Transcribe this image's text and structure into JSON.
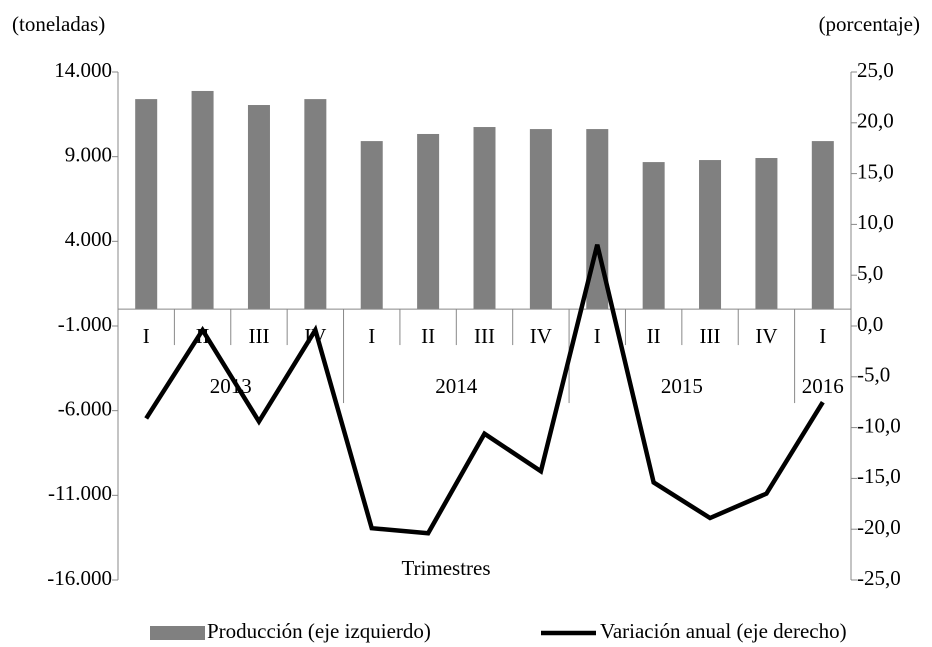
{
  "chart_data": {
    "type": "bar",
    "y_axis_label": "(toneladas)",
    "y2_axis_label": "(porcentaje)",
    "x_axis_label": "Trimestres",
    "category_groups": [
      {
        "name": "2013",
        "categories": [
          "I",
          "II",
          "III",
          "IV"
        ]
      },
      {
        "name": "2014",
        "categories": [
          "I",
          "II",
          "III",
          "IV"
        ]
      },
      {
        "name": "2015",
        "categories": [
          "I",
          "II",
          "III",
          "IV"
        ]
      },
      {
        "name": "2016",
        "categories": [
          "I"
        ]
      }
    ],
    "series": [
      {
        "name": "Producción (eje izquierdo)",
        "type": "bar",
        "color": "#808080",
        "values": [
          12400,
          12880,
          12050,
          12400,
          9920,
          10340,
          10750,
          10630,
          10630,
          8680,
          8800,
          8920,
          9920
        ]
      },
      {
        "name": "Variación anual (eje derecho)",
        "type": "line",
        "axis": "y2",
        "color": "#000000",
        "values": [
          -9.1,
          -0.4,
          -9.4,
          -0.4,
          -19.9,
          -20.4,
          -10.6,
          -14.3,
          8.0,
          -15.4,
          -18.9,
          -16.5,
          -7.5
        ]
      }
    ],
    "ylim": [
      -16000,
      14000
    ],
    "yticks": [
      {
        "value": -16000,
        "label": "-16.000"
      },
      {
        "value": -11000,
        "label": "-11.000"
      },
      {
        "value": -6000,
        "label": "-6.000"
      },
      {
        "value": -1000,
        "label": "-1.000"
      },
      {
        "value": 4000,
        "label": "4.000"
      },
      {
        "value": 9000,
        "label": "9.000"
      },
      {
        "value": 14000,
        "label": "14.000"
      }
    ],
    "y2lim": [
      -25,
      25
    ],
    "y2ticks": [
      {
        "value": -25,
        "label": "-25,0"
      },
      {
        "value": -20,
        "label": "-20,0"
      },
      {
        "value": -15,
        "label": "-15,0"
      },
      {
        "value": -10,
        "label": "-10,0"
      },
      {
        "value": -5,
        "label": "-5,0"
      },
      {
        "value": 0,
        "label": "0,0"
      },
      {
        "value": 5,
        "label": "5,0"
      },
      {
        "value": 10,
        "label": "10,0"
      },
      {
        "value": 15,
        "label": "15,0"
      },
      {
        "value": 20,
        "label": "20,0"
      },
      {
        "value": 25,
        "label": "25,0"
      }
    ],
    "grid": false,
    "legend": "bottom"
  }
}
